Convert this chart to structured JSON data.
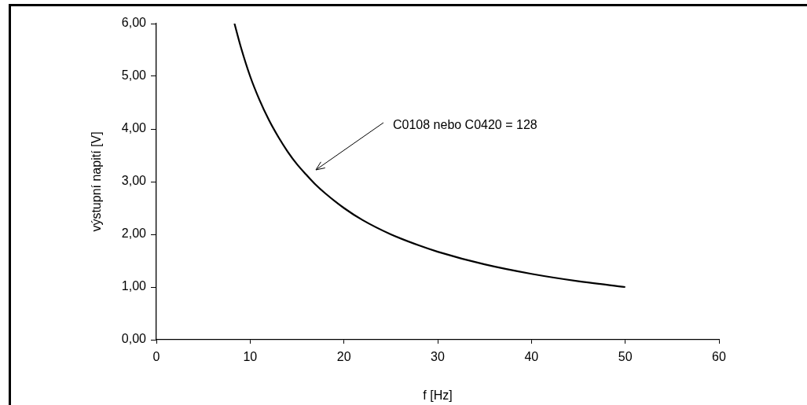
{
  "chart_data": {
    "type": "line",
    "xlabel": "f [Hz]",
    "ylabel": "výstupní napití [V]",
    "x": [
      8.33,
      9,
      10,
      11,
      12,
      13,
      14,
      15,
      16,
      17,
      18,
      20,
      22,
      25,
      28,
      30,
      35,
      40,
      45,
      50
    ],
    "series": [
      {
        "color": "#000000",
        "values": [
          6.0,
          5.56,
          5.0,
          4.55,
          4.17,
          3.85,
          3.57,
          3.33,
          3.13,
          2.94,
          2.78,
          2.5,
          2.27,
          2.0,
          1.79,
          1.67,
          1.43,
          1.25,
          1.11,
          1.0
        ]
      }
    ],
    "xlim": [
      0,
      60
    ],
    "xticks": [
      0,
      10,
      20,
      30,
      40,
      50,
      60
    ],
    "ylim": [
      0,
      6
    ],
    "yticks": [
      {
        "value": 0,
        "label": "0,00"
      },
      {
        "value": 1,
        "label": "1,00"
      },
      {
        "value": 2,
        "label": "2,00"
      },
      {
        "value": 3,
        "label": "3,00"
      },
      {
        "value": 4,
        "label": "4,00"
      },
      {
        "value": 5,
        "label": "5,00"
      },
      {
        "value": 6,
        "label": "6,00"
      }
    ],
    "annotations": [
      "C0108 nebo C0420 = 128"
    ],
    "grid": false,
    "legend": false,
    "marker": "none",
    "line_style": "solid"
  }
}
